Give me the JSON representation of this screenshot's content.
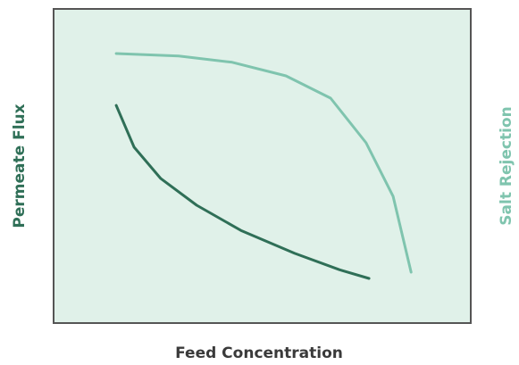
{
  "chart_data": {
    "type": "line",
    "xlabel": "Feed Concentration",
    "xlim": [
      0,
      100
    ],
    "ylim": [
      0,
      100
    ],
    "y2lim": [
      0,
      100
    ],
    "background": "#e0f1e9",
    "series": [
      {
        "name": "Permeate Flux",
        "color": "#2f6f57",
        "axis": "y",
        "x": [
          15.0,
          19.3,
          25.7,
          34.3,
          44.9,
          57.8,
          68.5,
          75.6
        ],
        "values": [
          69.3,
          56.0,
          46.0,
          37.5,
          29.5,
          22.2,
          17.0,
          14.2
        ]
      },
      {
        "name": "Salt Rejection",
        "color": "#7fc4ae",
        "axis": "y2",
        "x": [
          15.0,
          30.0,
          42.8,
          55.7,
          66.4,
          74.9,
          81.4,
          85.7
        ],
        "values": [
          85.8,
          85.0,
          83.0,
          78.7,
          71.6,
          57.4,
          40.3,
          16.2
        ]
      }
    ]
  }
}
